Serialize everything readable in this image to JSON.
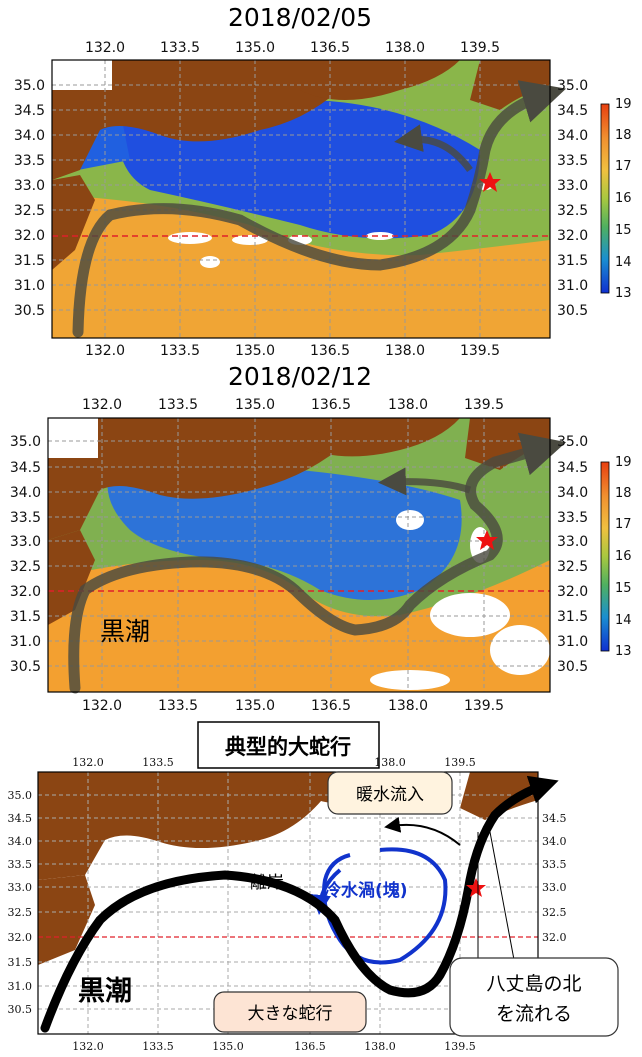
{
  "panels": [
    {
      "date": "2018/02/05"
    },
    {
      "date": "2018/02/12"
    }
  ],
  "lon_ticks": [
    "132.0",
    "133.5",
    "135.0",
    "136.5",
    "138.0",
    "139.5"
  ],
  "lat_ticks": [
    "35.0",
    "34.5",
    "34.0",
    "33.5",
    "33.0",
    "32.5",
    "32.0",
    "31.5",
    "31.0",
    "30.5"
  ],
  "colorbar_ticks": [
    "19",
    "18",
    "17",
    "16",
    "15",
    "14",
    "13"
  ],
  "labels": {
    "kuroshio": "黒潮",
    "schematic_title": "典型的大蛇行",
    "warm_inflow": "暖水流入",
    "cold_eddy": "冷水渦(塊)",
    "offshore": "離岸",
    "large_meander": "大きな蛇行",
    "hachijo_line1": "八丈島の北",
    "hachijo_line2": "を流れる"
  },
  "colors": {
    "land": "#8b4513",
    "cold": "#1f4fe0",
    "mid": "#7ab04a",
    "warm": "#f0a030",
    "path_dark": "#4a4a40",
    "eddy": "#1133cc",
    "reference_line": "#e0202a",
    "star": "#ee1111"
  }
}
